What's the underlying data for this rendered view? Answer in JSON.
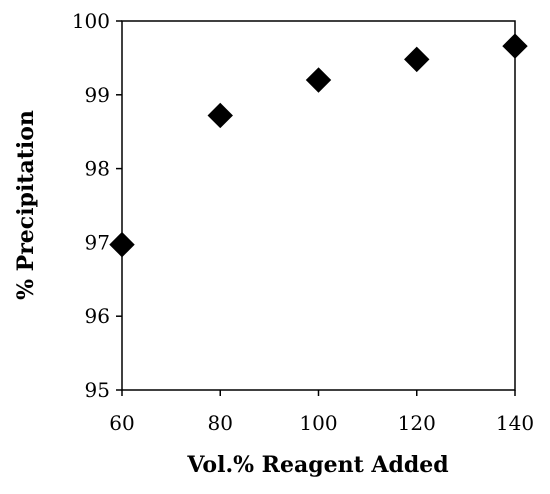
{
  "chart_data": {
    "type": "scatter",
    "title": "",
    "xlabel": "Vol.% Reagent Added",
    "ylabel": "% Precipitation",
    "xlim": [
      60,
      140
    ],
    "ylim": [
      95,
      100
    ],
    "xticks": [
      60,
      80,
      100,
      120,
      140
    ],
    "yticks": [
      95,
      96,
      97,
      98,
      99,
      100
    ],
    "grid": false,
    "marker": "diamond",
    "marker_color": "#000000",
    "series": [
      {
        "x": [
          60,
          80,
          100,
          120,
          140
        ],
        "y": [
          96.97,
          98.72,
          99.2,
          99.48,
          99.66
        ]
      }
    ]
  }
}
